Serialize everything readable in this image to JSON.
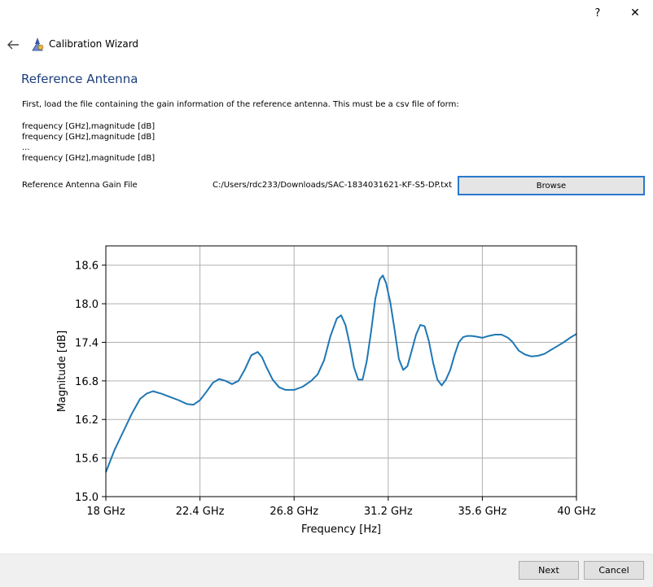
{
  "window": {
    "help_label": "?",
    "close_label": "✕"
  },
  "header": {
    "back_icon": "back-arrow-icon",
    "app_icon": "wizard-icon",
    "title": "Calibration Wizard"
  },
  "page": {
    "heading": "Reference Antenna",
    "intro": "First, load the file containing the gain information of the reference antenna. This must be a csv file of form:",
    "format_lines": [
      "frequency [GHz],magnitude [dB]",
      "frequency [GHz],magnitude [dB]",
      "...",
      "frequency [GHz],magnitude [dB]"
    ],
    "file_label": "Reference Antenna Gain File",
    "file_path": "C:/Users/rdc233/Downloads/SAC-1834031621-KF-S5-DP.txt",
    "browse_label": "Browse"
  },
  "chart_data": {
    "type": "line",
    "title": "",
    "xlabel": "Frequency [Hz]",
    "ylabel": "Magnitude [dB]",
    "xlim": [
      18,
      40
    ],
    "ylim": [
      15.0,
      18.9
    ],
    "xticks": [
      18,
      22.4,
      26.8,
      31.2,
      35.6,
      40
    ],
    "xtick_labels": [
      "18 GHz",
      "22.4 GHz",
      "26.8 GHz",
      "31.2 GHz",
      "35.6 GHz",
      "40 GHz"
    ],
    "yticks": [
      15.0,
      15.6,
      16.2,
      16.8,
      17.4,
      18.0,
      18.6
    ],
    "ytick_labels": [
      "15.0",
      "15.6",
      "16.2",
      "16.8",
      "17.4",
      "18.0",
      "18.6"
    ],
    "grid": true,
    "color": "#1f77b4",
    "series": [
      {
        "x": [
          18.0,
          18.4,
          18.8,
          19.2,
          19.6,
          19.9,
          20.2,
          20.6,
          21.0,
          21.4,
          21.8,
          22.1,
          22.4,
          22.7,
          23.0,
          23.3,
          23.6,
          23.9,
          24.2,
          24.5,
          24.8,
          25.1,
          25.3,
          25.5,
          25.8,
          26.1,
          26.4,
          26.8,
          27.2,
          27.6,
          27.9,
          28.2,
          28.5,
          28.8,
          29.0,
          29.2,
          29.4,
          29.6,
          29.8,
          30.0,
          30.2,
          30.4,
          30.6,
          30.8,
          30.95,
          31.1,
          31.3,
          31.5,
          31.7,
          31.9,
          32.1,
          32.3,
          32.5,
          32.7,
          32.9,
          33.1,
          33.3,
          33.5,
          33.7,
          33.9,
          34.1,
          34.3,
          34.5,
          34.7,
          34.9,
          35.1,
          35.3,
          35.6,
          35.9,
          36.2,
          36.5,
          36.8,
          37.0,
          37.3,
          37.6,
          37.9,
          38.2,
          38.5,
          38.8,
          39.1,
          39.4,
          39.7,
          40.0
        ],
        "y": [
          15.38,
          15.72,
          16.0,
          16.28,
          16.52,
          16.6,
          16.64,
          16.6,
          16.55,
          16.5,
          16.44,
          16.43,
          16.5,
          16.63,
          16.77,
          16.83,
          16.8,
          16.75,
          16.8,
          16.98,
          17.2,
          17.25,
          17.17,
          17.02,
          16.82,
          16.7,
          16.66,
          16.66,
          16.71,
          16.8,
          16.9,
          17.12,
          17.5,
          17.77,
          17.82,
          17.67,
          17.37,
          17.01,
          16.82,
          16.82,
          17.11,
          17.57,
          18.08,
          18.38,
          18.44,
          18.32,
          18.02,
          17.59,
          17.14,
          16.97,
          17.03,
          17.27,
          17.52,
          17.67,
          17.65,
          17.42,
          17.08,
          16.82,
          16.73,
          16.82,
          16.97,
          17.2,
          17.4,
          17.48,
          17.5,
          17.5,
          17.49,
          17.47,
          17.5,
          17.52,
          17.52,
          17.47,
          17.41,
          17.27,
          17.21,
          17.18,
          17.19,
          17.22,
          17.28,
          17.34,
          17.4,
          17.47,
          17.53
        ]
      }
    ]
  },
  "footer": {
    "next_label": "Next",
    "cancel_label": "Cancel"
  }
}
